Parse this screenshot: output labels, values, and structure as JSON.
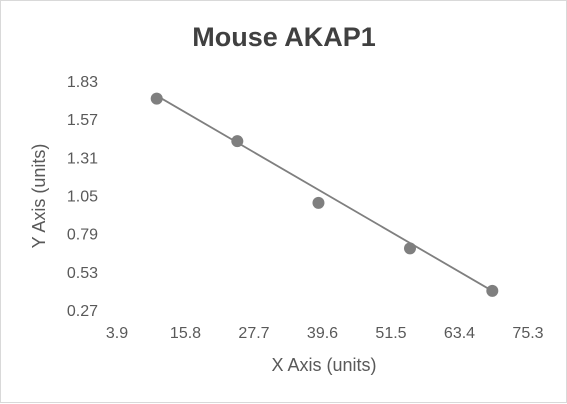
{
  "chart_data": {
    "type": "scatter",
    "title": "Mouse AKAP1",
    "xlabel": "X Axis (units)",
    "ylabel": "Y Axis (units)",
    "xlim": [
      3.9,
      75.3
    ],
    "ylim": [
      0.27,
      1.83
    ],
    "x_ticks": [
      "3.9",
      "15.8",
      "27.7",
      "39.6",
      "51.5",
      "63.4",
      "75.3"
    ],
    "y_ticks": [
      "0.27",
      "0.53",
      "0.79",
      "1.05",
      "1.31",
      "1.57",
      "1.83"
    ],
    "grid": false,
    "legend": "none",
    "series": [
      {
        "points": [
          {
            "x": 10.8,
            "y": 1.71
          },
          {
            "x": 24.8,
            "y": 1.42
          },
          {
            "x": 38.9,
            "y": 1.0
          },
          {
            "x": 54.8,
            "y": 0.69
          },
          {
            "x": 69.1,
            "y": 0.4
          }
        ],
        "trendline": {
          "type": "linear",
          "from": {
            "x": 10.8,
            "y": 1.73
          },
          "to": {
            "x": 69.1,
            "y": 0.4
          }
        }
      }
    ],
    "colors": {
      "marker": "#7f7f7f",
      "trendline": "#7f7f7f"
    }
  }
}
